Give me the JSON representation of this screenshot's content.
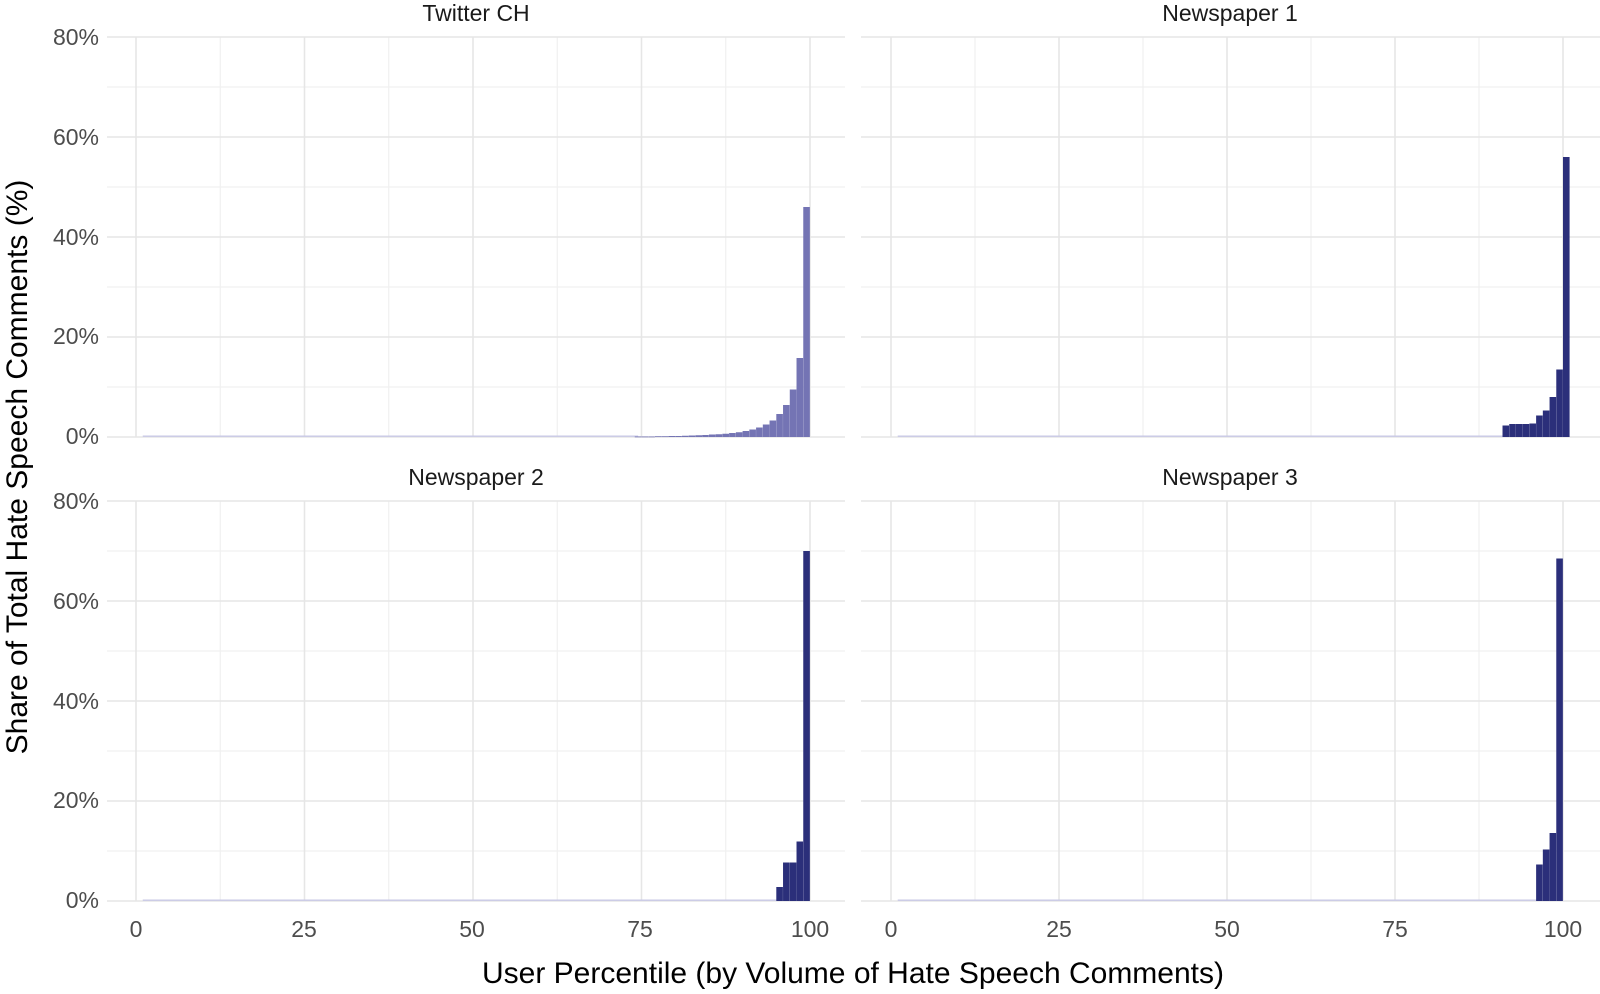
{
  "chart_data": {
    "type": "bar",
    "xlabel": "User Percentile (by Volume of Hate Speech Comments)",
    "ylabel": "Share of Total Hate Speech Comments (%)",
    "xlim": [
      0,
      100
    ],
    "ylim": [
      0,
      80
    ],
    "x_ticks": [
      "0",
      "25",
      "50",
      "75",
      "100"
    ],
    "y_ticks": [
      "0%",
      "20%",
      "40%",
      "60%",
      "80%"
    ],
    "grid": true,
    "colors": {
      "bar_dark": "#2b2f7a",
      "bar_light": "#7474b4",
      "trace": "#c8c8e6"
    },
    "panels": [
      {
        "title": "Twitter CH",
        "bar_color": "#7474b4",
        "points": [
          [
            75,
            0.1
          ],
          [
            76,
            0.1
          ],
          [
            77,
            0.1
          ],
          [
            78,
            0.15
          ],
          [
            79,
            0.15
          ],
          [
            80,
            0.2
          ],
          [
            81,
            0.2
          ],
          [
            82,
            0.25
          ],
          [
            83,
            0.3
          ],
          [
            84,
            0.35
          ],
          [
            85,
            0.4
          ],
          [
            86,
            0.5
          ],
          [
            87,
            0.55
          ],
          [
            88,
            0.65
          ],
          [
            89,
            0.8
          ],
          [
            90,
            0.95
          ],
          [
            91,
            1.2
          ],
          [
            92,
            1.5
          ],
          [
            93,
            1.9
          ],
          [
            94,
            2.5
          ],
          [
            95,
            3.3
          ],
          [
            96,
            4.6
          ],
          [
            97,
            6.4
          ],
          [
            98,
            9.5
          ],
          [
            99,
            15.8
          ],
          [
            100,
            46.0
          ]
        ]
      },
      {
        "title": "Newspaper 1",
        "bar_color": "#2b2f7a",
        "points": [
          [
            92,
            2.3
          ],
          [
            93,
            2.6
          ],
          [
            94,
            2.6
          ],
          [
            95,
            2.6
          ],
          [
            96,
            2.7
          ],
          [
            97,
            4.3
          ],
          [
            98,
            5.3
          ],
          [
            99,
            8.0
          ],
          [
            100,
            13.5
          ],
          [
            101,
            56.0
          ]
        ]
      },
      {
        "title": "Newspaper 2",
        "bar_color": "#2b2f7a",
        "points": [
          [
            96,
            2.8
          ],
          [
            97,
            7.7
          ],
          [
            98,
            7.7
          ],
          [
            99,
            11.9
          ],
          [
            100,
            70.0
          ]
        ]
      },
      {
        "title": "Newspaper 3",
        "bar_color": "#2b2f7a",
        "points": [
          [
            97,
            7.3
          ],
          [
            98,
            10.3
          ],
          [
            99,
            13.6
          ],
          [
            100,
            68.5
          ]
        ]
      }
    ]
  }
}
